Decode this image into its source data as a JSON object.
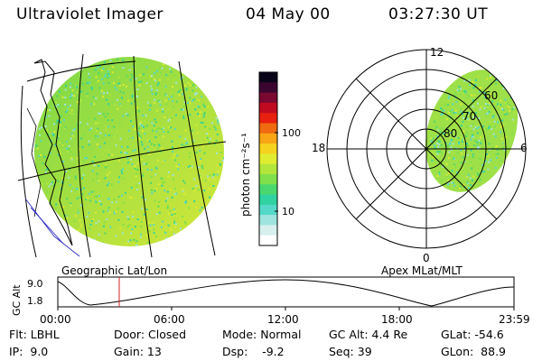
{
  "header": {
    "instrument": "Ultraviolet Imager",
    "date": "04 May 00",
    "time": "03:27:30 UT"
  },
  "left_panel": {
    "caption": "Geographic Lat/Lon"
  },
  "colorbar": {
    "unit_label": "photon cm⁻²s⁻¹",
    "ticks": [
      "100",
      "10"
    ],
    "colors": [
      "#ffffff",
      "#d7f0ee",
      "#9fe4de",
      "#55d8c8",
      "#2fd2a0",
      "#4ad86e",
      "#7fe04c",
      "#b2e63a",
      "#e0ec30",
      "#f5d21e",
      "#f9a515",
      "#f06a10",
      "#e82010",
      "#c00a20",
      "#7a0830",
      "#3a0630",
      "#0a0418"
    ]
  },
  "right_panel": {
    "caption": "Apex MLat/MLT",
    "mlt_labels": [
      "12",
      "18",
      "6",
      "0"
    ],
    "mlat_labels": [
      "60",
      "70",
      "80"
    ]
  },
  "altitude_plot": {
    "ylabel": "GC Alt",
    "yticks": [
      "9.0",
      "1.8"
    ],
    "xticks": [
      "00:00",
      "06:00",
      "12:00",
      "18:00",
      "23:59"
    ],
    "marker_color": "#d02020"
  },
  "info": {
    "row1": {
      "flt": "Flt: LBHL",
      "door": "Door: Closed",
      "mode": "Mode: Normal",
      "gc_alt": "GC Alt: 4.4 Re",
      "glat": "GLat: -54.6"
    },
    "row2": {
      "ip": "IP:  9.0",
      "gain": "Gain: 13",
      "dsp": "Dsp:    -9.2",
      "seq": "Seq: 39",
      "glon": "GLon:  88.9"
    }
  }
}
